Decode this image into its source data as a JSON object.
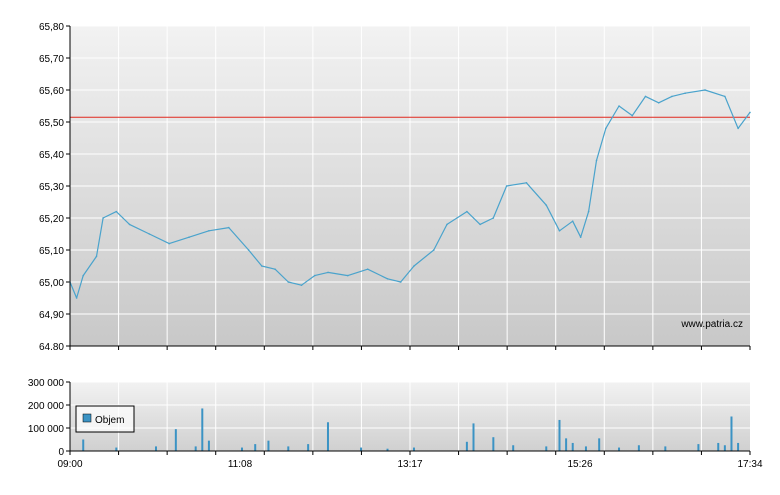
{
  "colors": {
    "line": "#4aa3cc",
    "reference_line": "#e0281e",
    "volume_bar": "#3b93c4",
    "grid": "#ffffff",
    "axis": "#000000"
  },
  "watermark": "www.patria.cz",
  "legend": {
    "label": "Objem",
    "swatch_color": "#3b93c4",
    "position": "left"
  },
  "chart_data": [
    {
      "type": "line",
      "name": "price",
      "title": "",
      "xlabel": "",
      "ylabel": "",
      "ylim": [
        64.8,
        65.8
      ],
      "y_ticks": [
        "64.80",
        "64,90",
        "65,00",
        "65,10",
        "65,20",
        "65,30",
        "65,40",
        "65,50",
        "65,60",
        "65,70",
        "65,80"
      ],
      "x_ticks": [
        "09:00",
        "11:08",
        "13:17",
        "15:26",
        "17:34"
      ],
      "xlim": [
        "09:00",
        "17:34"
      ],
      "grid": true,
      "reference_line": 65.515,
      "x": [
        "09:00",
        "09:05",
        "09:10",
        "09:20",
        "09:25",
        "09:35",
        "09:45",
        "10:00",
        "10:15",
        "10:30",
        "10:45",
        "11:00",
        "11:15",
        "11:25",
        "11:35",
        "11:45",
        "11:55",
        "12:05",
        "12:15",
        "12:30",
        "12:45",
        "13:00",
        "13:10",
        "13:20",
        "13:35",
        "13:45",
        "14:00",
        "14:10",
        "14:20",
        "14:30",
        "14:45",
        "15:00",
        "15:10",
        "15:20",
        "15:26",
        "15:32",
        "15:38",
        "15:45",
        "15:55",
        "16:05",
        "16:15",
        "16:25",
        "16:35",
        "16:45",
        "17:00",
        "17:15",
        "17:25",
        "17:34"
      ],
      "values": [
        65.0,
        64.95,
        65.02,
        65.08,
        65.2,
        65.22,
        65.18,
        65.15,
        65.12,
        65.14,
        65.16,
        65.17,
        65.1,
        65.05,
        65.04,
        65.0,
        64.99,
        65.02,
        65.03,
        65.02,
        65.04,
        65.01,
        65.0,
        65.05,
        65.1,
        65.18,
        65.22,
        65.18,
        65.2,
        65.3,
        65.31,
        65.24,
        65.16,
        65.19,
        65.14,
        65.22,
        65.38,
        65.48,
        65.55,
        65.52,
        65.58,
        65.56,
        65.58,
        65.59,
        65.6,
        65.58,
        65.48,
        65.53
      ]
    },
    {
      "type": "bar",
      "name": "Objem",
      "ylim": [
        0,
        300000
      ],
      "y_ticks": [
        "0",
        "100 000",
        "200 000",
        "300 000"
      ],
      "x_ticks": [
        "09:00",
        "11:08",
        "13:17",
        "15:26",
        "17:34"
      ],
      "grid": true,
      "x": [
        "09:10",
        "09:35",
        "10:05",
        "10:20",
        "10:35",
        "10:40",
        "10:45",
        "11:10",
        "11:20",
        "11:30",
        "11:45",
        "12:00",
        "12:15",
        "12:40",
        "13:00",
        "13:20",
        "14:00",
        "14:05",
        "14:20",
        "14:35",
        "15:00",
        "15:10",
        "15:15",
        "15:20",
        "15:30",
        "15:40",
        "15:55",
        "16:10",
        "16:30",
        "16:55",
        "17:10",
        "17:15",
        "17:20",
        "17:25"
      ],
      "values": [
        50000,
        15000,
        20000,
        95000,
        20000,
        185000,
        45000,
        15000,
        30000,
        45000,
        20000,
        30000,
        125000,
        15000,
        10000,
        15000,
        40000,
        120000,
        60000,
        25000,
        20000,
        135000,
        55000,
        35000,
        20000,
        55000,
        15000,
        25000,
        20000,
        30000,
        35000,
        25000,
        150000,
        35000
      ]
    }
  ]
}
